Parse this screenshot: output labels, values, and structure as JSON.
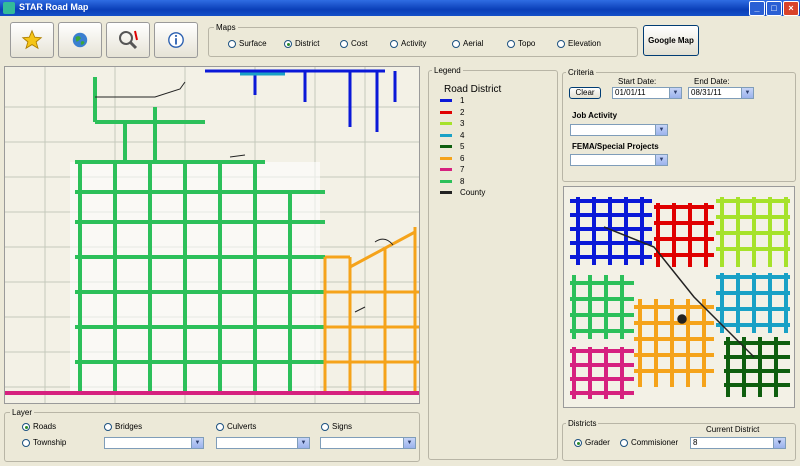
{
  "window": {
    "title": "STAR Road Map"
  },
  "maps": {
    "group_title": "Maps",
    "options": [
      "Surface",
      "District",
      "Cost",
      "Activity",
      "Aerial",
      "Topo",
      "Elevation"
    ],
    "selected": "District",
    "google_map_label": "Google Map"
  },
  "legend": {
    "group_title": "Legend",
    "heading": "Road District",
    "items": [
      {
        "label": "1",
        "color": "#0a18d8"
      },
      {
        "label": "2",
        "color": "#e00000"
      },
      {
        "label": "3",
        "color": "#a6e22a"
      },
      {
        "label": "4",
        "color": "#19a1c6"
      },
      {
        "label": "5",
        "color": "#0e5e0e"
      },
      {
        "label": "6",
        "color": "#f5a31a"
      },
      {
        "label": "7",
        "color": "#d6217f"
      },
      {
        "label": "8",
        "color": "#2cc05a"
      },
      {
        "label": "County",
        "color": "#222222"
      }
    ]
  },
  "criteria": {
    "group_title": "Criteria",
    "clear_label": "Clear",
    "start_label": "Start Date:",
    "start_value": "01/01/11",
    "end_label": "End Date:",
    "end_value": "08/31/11",
    "job_activity_label": "Job Activity",
    "fema_label": "FEMA/Special Projects"
  },
  "layer": {
    "group_title": "Layer",
    "options": [
      "Roads",
      "Bridges",
      "Culverts",
      "Signs",
      "Township"
    ],
    "selected": "Roads"
  },
  "districts": {
    "group_title": "Districts",
    "options": [
      "Grader",
      "Commisioner"
    ],
    "selected": "Grader",
    "current_label": "Current District",
    "current_value": "8"
  },
  "icons": [
    "star-icon",
    "globe-icon",
    "zoom-extent-icon",
    "info-icon"
  ]
}
